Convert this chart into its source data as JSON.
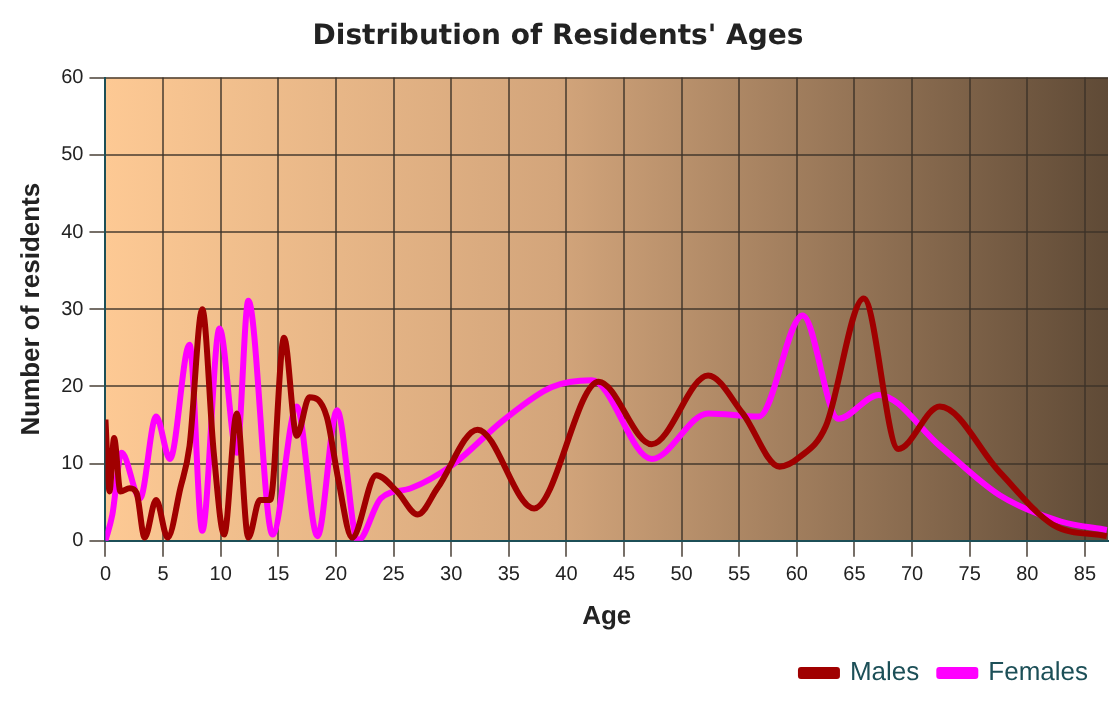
{
  "chart_data": {
    "type": "line",
    "title": "Distribution of Residents' Ages",
    "xlabel": "Age",
    "ylabel": "Number of residents",
    "xlim": [
      0,
      87
    ],
    "xticks": [
      0,
      5,
      10,
      15,
      20,
      25,
      30,
      35,
      40,
      45,
      50,
      55,
      60,
      65,
      70,
      75,
      80,
      85
    ],
    "ylim": [
      0,
      60
    ],
    "yticks": [
      0,
      10,
      20,
      30,
      40,
      50,
      60
    ],
    "grid": true,
    "legend": "bottom right",
    "marker": "none",
    "line_style": "solid",
    "series": [
      {
        "name": "Males",
        "color": "#a00000",
        "x": [
          0,
          0.35,
          0.75,
          1.3,
          2.1,
          2.7,
          3.4,
          4.4,
          5.4,
          6.5,
          7.3,
          8.4,
          9.4,
          10.3,
          11.4,
          12.4,
          13.4,
          14.3,
          15.5,
          16.6,
          17.7,
          19.2,
          20.2,
          21.4,
          23.5,
          25.3,
          27.1,
          28.8,
          32.3,
          37.2,
          42.8,
          47.4,
          52.3,
          55.3,
          58.5,
          60.2,
          62.5,
          65.8,
          68.8,
          72.4,
          77.6,
          82.2,
          86.9
        ],
        "values": [
          15.7,
          6.4,
          13.3,
          6.4,
          6.8,
          6.2,
          0.4,
          5.3,
          0.4,
          6.8,
          12.3,
          30,
          11.4,
          0.8,
          16.5,
          0.4,
          5.3,
          5.3,
          26.3,
          13.6,
          18.6,
          16.1,
          8,
          0.4,
          8.5,
          6.4,
          3.4,
          6.8,
          14.4,
          4.2,
          20.6,
          12.5,
          21.4,
          16.5,
          9.6,
          10.8,
          14.8,
          31.4,
          11.9,
          17.4,
          8.9,
          2.1,
          0.6
        ]
      },
      {
        "name": "Females",
        "color": "#ff00ff",
        "x": [
          0,
          0.6,
          1.4,
          3,
          4.4,
          5.6,
          7.3,
          8.4,
          9.9,
          11.4,
          12.4,
          14.5,
          16.6,
          18.4,
          20.1,
          21.9,
          23.9,
          26.5,
          30,
          34.6,
          38.7,
          42.2,
          47.4,
          52.3,
          56.7,
          60.5,
          63.6,
          67.1,
          72.4,
          77.6,
          82.9,
          86.9
        ],
        "values": [
          0,
          3.4,
          11.4,
          5.5,
          16.1,
          10.6,
          25.4,
          1.3,
          27.5,
          11.4,
          31.1,
          0.8,
          17.4,
          0.6,
          16.9,
          0,
          5.5,
          6.8,
          9.7,
          15.7,
          19.9,
          20.8,
          10.6,
          16.5,
          16.1,
          29.2,
          15.8,
          18.9,
          12.3,
          5.9,
          2.5,
          1.4
        ]
      }
    ]
  }
}
